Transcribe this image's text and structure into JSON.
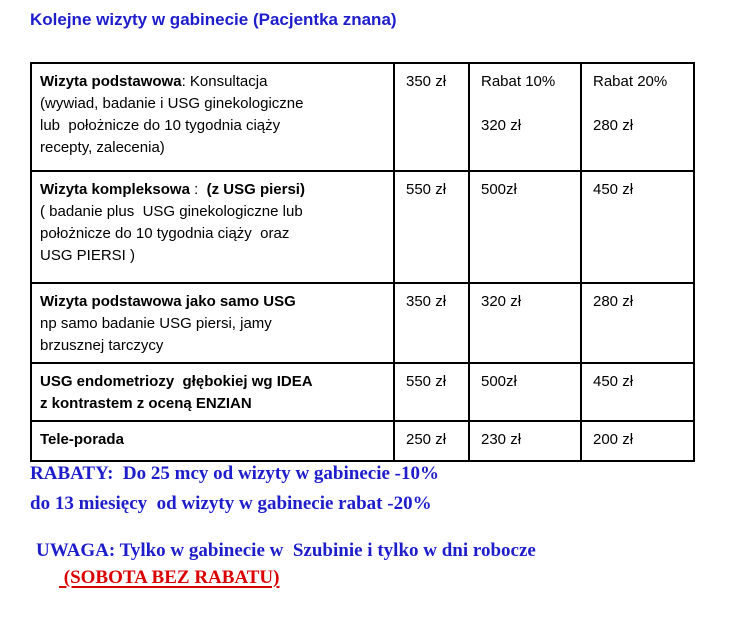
{
  "page": {
    "title": "Kolejne wizyty w gabinecie (Pacjentka znana)"
  },
  "colors": {
    "heading_blue": "#1d1dcb",
    "alert_red": "#da0000",
    "table_border": "#000000",
    "text_black": "#000000",
    "background": "#ffffff"
  },
  "table": {
    "rows": [
      {
        "service_lines": [
          [
            {
              "t": "Wizyta podstawowa",
              "b": true
            },
            {
              "t": ": Konsultacja"
            }
          ],
          [
            {
              "t": "(wywiad, badanie i USG ginekologiczne"
            }
          ],
          [
            {
              "t": "lub  położnicze do 10 tygodnia ciąży"
            }
          ],
          [
            {
              "t": "recepty, zalecenia)"
            }
          ]
        ],
        "price": "350 zł",
        "discount10_lines": [
          "Rabat 10%",
          "",
          "320 zł"
        ],
        "discount20_lines": [
          "Rabat 20%",
          "",
          "280 zł"
        ]
      },
      {
        "service_lines": [
          [
            {
              "t": "Wizyta kompleksowa",
              "b": true
            },
            {
              "t": " : "
            },
            {
              "t": " (z USG piersi)",
              "b": true
            }
          ],
          [
            {
              "t": "( badanie plus  USG ginekologiczne lub"
            }
          ],
          [
            {
              "t": "położnicze do 10 tygodnia ciąży  oraz"
            }
          ],
          [
            {
              "t": "USG PIERSI )"
            }
          ]
        ],
        "price": "550 zł",
        "discount10_lines": [
          "500zł"
        ],
        "discount20_lines": [
          "450 zł"
        ]
      },
      {
        "service_lines": [
          [
            {
              "t": "Wizyta podstawowa jako samo USG",
              "b": true
            }
          ],
          [
            {
              "t": "np samo badanie USG piersi, jamy"
            }
          ],
          [
            {
              "t": "brzusznej tarczycy"
            }
          ]
        ],
        "price": "350 zł",
        "discount10_lines": [
          "320 zł"
        ],
        "discount20_lines": [
          "280 zł"
        ]
      },
      {
        "service_lines": [
          [
            {
              "t": "USG endometriozy  głębokiej wg IDEA",
              "b": true
            }
          ],
          [
            {
              "t": "z kontrastem z oceną ENZIAN",
              "b": true
            }
          ]
        ],
        "price": "550 zł",
        "discount10_lines": [
          "500zł"
        ],
        "discount20_lines": [
          "450 zł"
        ]
      },
      {
        "service_lines": [
          [
            {
              "t": "Tele-porada",
              "b": true
            }
          ]
        ],
        "price": "250 zł",
        "discount10_lines": [
          "230 zł"
        ],
        "discount20_lines": [
          "200 zł"
        ]
      }
    ]
  },
  "notes": {
    "rabaty_line1": "RABATY:  Do 25 mcy od wizyty w gabinecie -10%",
    "rabaty_line2": "do 13 miesięcy  od wizyty w gabinecie rabat -20%",
    "uwaga": "UWAGA: Tylko w gabinecie w  Szubinie i tylko w dni robocze",
    "sobota": " (SOBOTA BEZ RABATU)"
  }
}
